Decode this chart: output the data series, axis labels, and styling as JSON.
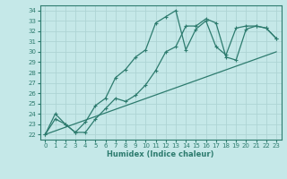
{
  "xlabel": "Humidex (Indice chaleur)",
  "bg_color": "#c5e8e8",
  "grid_color": "#aed4d4",
  "line_color": "#2d7b6e",
  "xlim": [
    -0.5,
    23.5
  ],
  "ylim": [
    21.5,
    34.5
  ],
  "xticks": [
    0,
    1,
    2,
    3,
    4,
    5,
    6,
    7,
    8,
    9,
    10,
    11,
    12,
    13,
    14,
    15,
    16,
    17,
    18,
    19,
    20,
    21,
    22,
    23
  ],
  "yticks": [
    22,
    23,
    24,
    25,
    26,
    27,
    28,
    29,
    30,
    31,
    32,
    33,
    34
  ],
  "line1_x": [
    0,
    1,
    2,
    3,
    4,
    5,
    6,
    7,
    8,
    9,
    10,
    11,
    12,
    13,
    14,
    15,
    16,
    17,
    18,
    19,
    20,
    21,
    22,
    23
  ],
  "line1_y": [
    22.0,
    24.0,
    23.0,
    22.2,
    23.2,
    24.8,
    25.5,
    27.5,
    28.3,
    29.5,
    30.2,
    32.8,
    33.4,
    34.0,
    30.2,
    32.2,
    33.0,
    30.5,
    29.7,
    32.3,
    32.5,
    32.5,
    32.3,
    31.3
  ],
  "line2_x": [
    0,
    23
  ],
  "line2_y": [
    22.0,
    30.0
  ],
  "line3_x": [
    0,
    1,
    2,
    3,
    4,
    5,
    6,
    7,
    8,
    9,
    10,
    11,
    12,
    13,
    14,
    15,
    16,
    17,
    18,
    19,
    20,
    21,
    22,
    23
  ],
  "line3_y": [
    22.0,
    23.5,
    23.0,
    22.2,
    22.2,
    23.5,
    24.5,
    25.5,
    25.2,
    25.8,
    26.8,
    28.2,
    30.0,
    30.5,
    32.5,
    32.5,
    33.2,
    32.8,
    29.5,
    29.2,
    32.2,
    32.5,
    32.3,
    31.3
  ]
}
